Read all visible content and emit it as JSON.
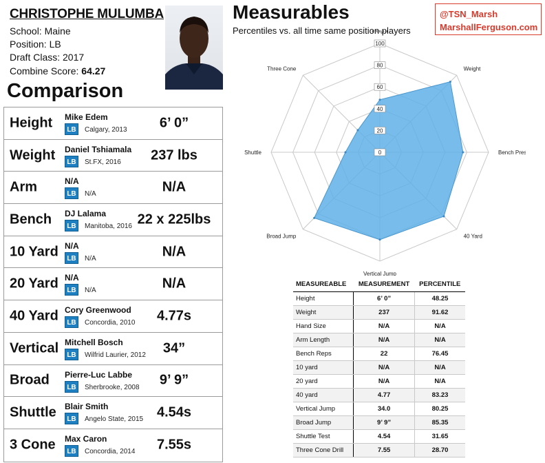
{
  "player": {
    "name": "CHRISTOPHE MULUMBA",
    "school": "School: Maine",
    "position": "Position: LB",
    "draft_class": "Draft Class: 2017",
    "combine_label": "Combine Score: ",
    "combine_score": "64.27"
  },
  "comparison": {
    "title": "Comparison",
    "rows": [
      {
        "metric": "Height",
        "name": "Mike Edem",
        "pos": "LB",
        "school": "Calgary, 2013",
        "value": "6’ 0”"
      },
      {
        "metric": "Weight",
        "name": "Daniel Tshiamala",
        "pos": "LB",
        "school": "St.FX, 2016",
        "value": "237 lbs"
      },
      {
        "metric": "Arm",
        "name": "N/A",
        "pos": "LB",
        "school": "N/A",
        "value": "N/A"
      },
      {
        "metric": "Bench",
        "name": "DJ Lalama",
        "pos": "LB",
        "school": "Manitoba, 2016",
        "value": "22 x 225lbs"
      },
      {
        "metric": "10 Yard",
        "name": "N/A",
        "pos": "LB",
        "school": "N/A",
        "value": "N/A"
      },
      {
        "metric": "20 Yard",
        "name": "N/A",
        "pos": "LB",
        "school": "N/A",
        "value": "N/A"
      },
      {
        "metric": "40 Yard",
        "name": "Cory Greenwood",
        "pos": "LB",
        "school": "Concordia, 2010",
        "value": "4.77s"
      },
      {
        "metric": "Vertical",
        "name": "Mitchell Bosch",
        "pos": "LB",
        "school": "Wilfrid Laurier, 2012",
        "value": "34”"
      },
      {
        "metric": "Broad",
        "name": "Pierre-Luc Labbe",
        "pos": "LB",
        "school": "Sherbrooke, 2008",
        "value": "9’ 9”"
      },
      {
        "metric": "Shuttle",
        "name": "Blair Smith",
        "pos": "LB",
        "school": "Angelo State, 2015",
        "value": "4.54s"
      },
      {
        "metric": "3 Cone",
        "name": "Max Caron",
        "pos": "LB",
        "school": "Concordia, 2014",
        "value": "7.55s"
      }
    ]
  },
  "measurables": {
    "title": "Measurables",
    "subtitle": "Percentiles vs. all time same position players"
  },
  "branding": {
    "twitter": "@TSN_Marsh",
    "site": "MarshallFerguson.com",
    "color": "#d83a2c"
  },
  "chart_data": {
    "type": "radar",
    "axes": [
      "Height",
      "Weight",
      "Bench Press",
      "40 Yard",
      "Vertical Jump",
      "Broad Jump",
      "Shuttle",
      "Three Cone"
    ],
    "values": [
      48.25,
      91.62,
      76.45,
      83.23,
      80.25,
      85.35,
      31.65,
      28.7
    ],
    "ticks": [
      "0",
      "20",
      "40",
      "60",
      "80",
      "100"
    ],
    "range": [
      0,
      100
    ],
    "fill_color": "#5fb0e6",
    "grid": true
  },
  "table": {
    "headers": [
      "MEASUREABLE",
      "MEASUREMENT",
      "PERCENTILE"
    ],
    "rows": [
      [
        "Height",
        "6’ 0”",
        "48.25"
      ],
      [
        "Weight",
        "237",
        "91.62"
      ],
      [
        "Hand Size",
        "N/A",
        "N/A"
      ],
      [
        "Arm Length",
        "N/A",
        "N/A"
      ],
      [
        "Bench Reps",
        "22",
        "76.45"
      ],
      [
        "10 yard",
        "N/A",
        "N/A"
      ],
      [
        "20 yard",
        "N/A",
        "N/A"
      ],
      [
        "40 yard",
        "4.77",
        "83.23"
      ],
      [
        "Vertical Jump",
        "34.0",
        "80.25"
      ],
      [
        "Broad Jump",
        "9’ 9”",
        "85.35"
      ],
      [
        "Shuttle Test",
        "4.54",
        "31.65"
      ],
      [
        "Three Cone Drill",
        "7.55",
        "28.70"
      ]
    ]
  }
}
